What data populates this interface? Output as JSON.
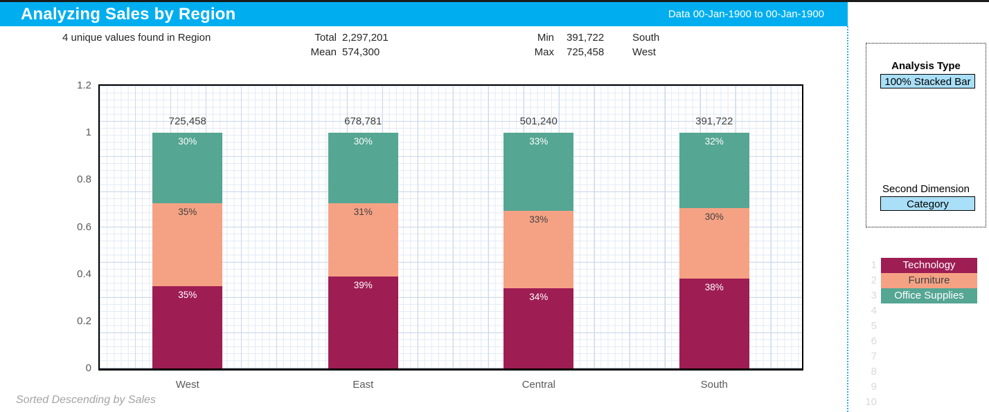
{
  "header": {
    "title": "Analyzing Sales by Region",
    "date_range": "Data 00-Jan-1900 to 00-Jan-1900",
    "bg_color": "#00AEEF"
  },
  "stats": {
    "unique_text": "4 unique values found in Region",
    "total_label": "Total",
    "total_value": "2,297,201",
    "mean_label": "Mean",
    "mean_value": "574,300",
    "min_label": "Min",
    "min_value": "391,722",
    "min_region": "South",
    "max_label": "Max",
    "max_value": "725,458",
    "max_region": "West"
  },
  "controls": {
    "analysis_type_label": "Analysis Type",
    "analysis_type_value": "100% Stacked Bar",
    "second_dimension_label": "Second Dimension",
    "second_dimension_value": "Category"
  },
  "row_numbers": [
    "1",
    "2",
    "3",
    "4",
    "5",
    "6",
    "7",
    "8",
    "9",
    "10"
  ],
  "footnote": "Sorted Descending by Sales",
  "chart_data": {
    "type": "bar",
    "subtype": "100-percent-stacked-column",
    "title": "Analyzing Sales by Region",
    "categories": [
      "West",
      "East",
      "Central",
      "South"
    ],
    "bar_totals": [
      725458,
      678781,
      501240,
      391722
    ],
    "bar_total_labels": [
      "725,458",
      "678,781",
      "501,240",
      "391,722"
    ],
    "series": [
      {
        "name": "Technology",
        "color": "#9E1D53",
        "label_color": "#FFFFFF",
        "fractions": [
          0.35,
          0.39,
          0.34,
          0.38
        ],
        "labels": [
          "35%",
          "39%",
          "34%",
          "38%"
        ]
      },
      {
        "name": "Furniture",
        "color": "#F5A284",
        "label_color": "#404040",
        "fractions": [
          0.35,
          0.31,
          0.33,
          0.3
        ],
        "labels": [
          "35%",
          "31%",
          "33%",
          "30%"
        ]
      },
      {
        "name": "Office Supplies",
        "color": "#55A693",
        "label_color": "#FFFFFF",
        "fractions": [
          0.3,
          0.3,
          0.33,
          0.32
        ],
        "labels": [
          "30%",
          "30%",
          "33%",
          "32%"
        ]
      }
    ],
    "stack_order": "bottom-to-top",
    "y_ticks": [
      "0",
      "0.2",
      "0.4",
      "0.6",
      "0.8",
      "1",
      "1.2"
    ],
    "ylim": [
      0,
      1.2
    ],
    "grid": "fine graph-paper grid",
    "legend_position": "right panel rows 1-3",
    "sort_note": "Sorted Descending by Sales"
  }
}
